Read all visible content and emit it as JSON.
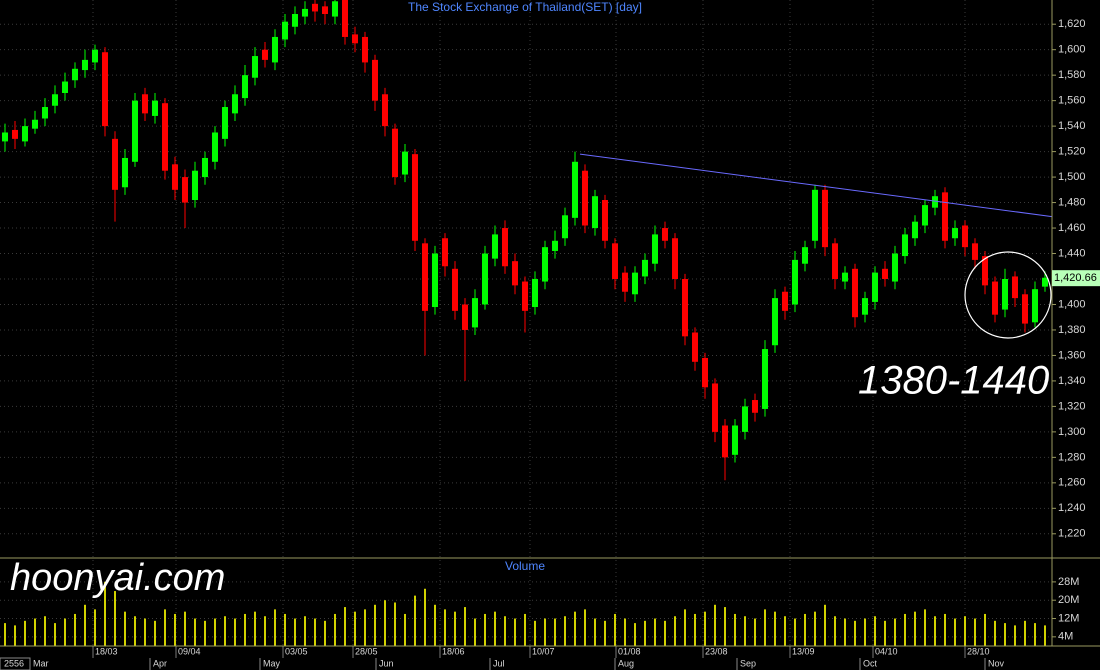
{
  "chart_data": {
    "type": "candlestick",
    "title": "The Stock Exchange of Thailand(SET) [day]",
    "volume_title": "Volume",
    "annotation": "1380-1440",
    "watermark": "hoonyai.com",
    "year_label": "2556",
    "up_color": "#00ff00",
    "down_color": "#ff0000",
    "volume_color": "#d2d200",
    "trendline_color": "#6a6aff",
    "grid": true,
    "ylim": [
      1201,
      1639
    ],
    "yticks": [
      {
        "value": 1220,
        "label": "1,220"
      },
      {
        "value": 1240,
        "label": "1,240"
      },
      {
        "value": 1260,
        "label": "1,260"
      },
      {
        "value": 1280,
        "label": "1,280"
      },
      {
        "value": 1300,
        "label": "1,300"
      },
      {
        "value": 1320,
        "label": "1,320"
      },
      {
        "value": 1340,
        "label": "1,340"
      },
      {
        "value": 1360,
        "label": "1,360"
      },
      {
        "value": 1380,
        "label": "1,380"
      },
      {
        "value": 1400,
        "label": "1,400"
      },
      {
        "value": 1420,
        "label": "1,420"
      },
      {
        "value": 1440,
        "label": "1,440"
      },
      {
        "value": 1460,
        "label": "1,460"
      },
      {
        "value": 1480,
        "label": "1,480"
      },
      {
        "value": 1500,
        "label": "1,500"
      },
      {
        "value": 1520,
        "label": "1,520"
      },
      {
        "value": 1540,
        "label": "1,540"
      },
      {
        "value": 1560,
        "label": "1,560"
      },
      {
        "value": 1580,
        "label": "1,580"
      },
      {
        "value": 1600,
        "label": "1,600"
      },
      {
        "value": 1620,
        "label": "1,620"
      }
    ],
    "vlim": [
      0,
      38
    ],
    "vticks": [
      {
        "value": 28,
        "label": "28M"
      },
      {
        "value": 20,
        "label": "20M"
      },
      {
        "value": 12,
        "label": "12M"
      },
      {
        "value": 4,
        "label": "4M"
      }
    ],
    "xlim": [
      -0.5,
      104.7
    ],
    "xticks": [
      {
        "value": 8.8,
        "label": "18/03"
      },
      {
        "value": 17.1,
        "label": "09/04"
      },
      {
        "value": 27.8,
        "label": "03/05"
      },
      {
        "value": 34.8,
        "label": "28/05"
      },
      {
        "value": 43.5,
        "label": "18/06"
      },
      {
        "value": 52.5,
        "label": "10/07"
      },
      {
        "value": 61.1,
        "label": "01/08"
      },
      {
        "value": 69.8,
        "label": "23/08"
      },
      {
        "value": 78.5,
        "label": "13/09"
      },
      {
        "value": 86.8,
        "label": "04/10"
      },
      {
        "value": 96,
        "label": "28/10"
      }
    ],
    "month_ticks": [
      {
        "value": 2.5,
        "label": "Mar"
      },
      {
        "value": 14.5,
        "label": "Apr"
      },
      {
        "value": 25.5,
        "label": "May"
      },
      {
        "value": 37.1,
        "label": "Jun"
      },
      {
        "value": 48.5,
        "label": "Jul"
      },
      {
        "value": 61,
        "label": "Aug"
      },
      {
        "value": 73.2,
        "label": "Sep"
      },
      {
        "value": 85.5,
        "label": "Oct"
      },
      {
        "value": 98,
        "label": "Nov"
      }
    ],
    "last_price": {
      "value": 1420.66,
      "label": "1,420.66"
    },
    "trendline": {
      "x": [
        57.5,
        104.7
      ],
      "y": [
        1518,
        1469
      ]
    },
    "open": [
      1528,
      1537,
      1528,
      1538,
      1546,
      1556,
      1566,
      1576,
      1584,
      1590,
      1598,
      1530,
      1492,
      1512,
      1565,
      1548,
      1558,
      1510,
      1500,
      1482,
      1500,
      1512,
      1530,
      1550,
      1562,
      1578,
      1600,
      1590,
      1608,
      1618,
      1626,
      1636,
      1634,
      1626,
      1640,
      1612,
      1610,
      1592,
      1565,
      1538,
      1502,
      1518,
      1448,
      1398,
      1452,
      1428,
      1400,
      1382,
      1400,
      1436,
      1460,
      1434,
      1418,
      1398,
      1418,
      1442,
      1452,
      1468,
      1505,
      1460,
      1482,
      1448,
      1425,
      1408,
      1422,
      1432,
      1460,
      1452,
      1420,
      1378,
      1358,
      1338,
      1305,
      1282,
      1300,
      1325,
      1318,
      1368,
      1410,
      1400,
      1432,
      1450,
      1490,
      1448,
      1418,
      1428,
      1392,
      1402,
      1428,
      1418,
      1438,
      1452,
      1462,
      1476,
      1488,
      1452,
      1462,
      1448,
      1438,
      1418,
      1396,
      1422,
      1408,
      1386,
      1414
    ],
    "high": [
      1542,
      1544,
      1546,
      1552,
      1562,
      1572,
      1582,
      1590,
      1600,
      1604,
      1602,
      1536,
      1522,
      1566,
      1570,
      1566,
      1562,
      1516,
      1506,
      1512,
      1520,
      1540,
      1560,
      1572,
      1588,
      1602,
      1606,
      1616,
      1628,
      1634,
      1638,
      1640,
      1638,
      1642,
      1644,
      1618,
      1614,
      1596,
      1570,
      1542,
      1526,
      1522,
      1452,
      1446,
      1456,
      1434,
      1405,
      1412,
      1446,
      1462,
      1466,
      1440,
      1422,
      1426,
      1450,
      1458,
      1476,
      1520,
      1510,
      1490,
      1486,
      1452,
      1430,
      1430,
      1440,
      1462,
      1465,
      1456,
      1424,
      1382,
      1362,
      1342,
      1310,
      1310,
      1326,
      1330,
      1372,
      1412,
      1414,
      1442,
      1450,
      1494,
      1494,
      1452,
      1430,
      1432,
      1410,
      1430,
      1434,
      1446,
      1460,
      1470,
      1482,
      1490,
      1492,
      1466,
      1466,
      1452,
      1442,
      1422,
      1428,
      1426,
      1412,
      1418,
      1426
    ],
    "low": [
      1520,
      1522,
      1524,
      1534,
      1540,
      1550,
      1560,
      1570,
      1578,
      1584,
      1532,
      1465,
      1486,
      1508,
      1544,
      1542,
      1498,
      1482,
      1460,
      1476,
      1494,
      1506,
      1524,
      1544,
      1556,
      1572,
      1586,
      1584,
      1602,
      1612,
      1620,
      1622,
      1620,
      1620,
      1604,
      1598,
      1582,
      1552,
      1532,
      1494,
      1496,
      1442,
      1360,
      1392,
      1422,
      1388,
      1340,
      1376,
      1396,
      1430,
      1424,
      1408,
      1378,
      1392,
      1412,
      1436,
      1446,
      1462,
      1456,
      1454,
      1444,
      1412,
      1402,
      1402,
      1416,
      1426,
      1444,
      1412,
      1368,
      1348,
      1326,
      1292,
      1262,
      1276,
      1294,
      1308,
      1312,
      1362,
      1388,
      1394,
      1426,
      1444,
      1438,
      1412,
      1412,
      1382,
      1386,
      1396,
      1414,
      1412,
      1432,
      1446,
      1456,
      1470,
      1444,
      1446,
      1438,
      1428,
      1408,
      1386,
      1390,
      1398,
      1378,
      1382,
      1410
    ],
    "close": [
      1535,
      1530,
      1540,
      1545,
      1555,
      1565,
      1575,
      1585,
      1592,
      1600,
      1540,
      1490,
      1515,
      1560,
      1550,
      1560,
      1505,
      1490,
      1480,
      1505,
      1515,
      1535,
      1555,
      1565,
      1580,
      1595,
      1592,
      1610,
      1622,
      1628,
      1632,
      1630,
      1628,
      1638,
      1610,
      1605,
      1590,
      1560,
      1540,
      1500,
      1520,
      1450,
      1395,
      1440,
      1430,
      1395,
      1380,
      1405,
      1440,
      1455,
      1430,
      1415,
      1395,
      1420,
      1445,
      1450,
      1470,
      1512,
      1462,
      1485,
      1450,
      1420,
      1410,
      1425,
      1435,
      1455,
      1450,
      1420,
      1375,
      1355,
      1335,
      1300,
      1280,
      1305,
      1320,
      1315,
      1365,
      1405,
      1395,
      1435,
      1445,
      1490,
      1445,
      1420,
      1425,
      1390,
      1405,
      1425,
      1420,
      1440,
      1455,
      1465,
      1478,
      1485,
      1450,
      1460,
      1445,
      1435,
      1415,
      1392,
      1420,
      1405,
      1385,
      1412,
      1421
    ],
    "volume": [
      10,
      9,
      11,
      12,
      13,
      10,
      12,
      14,
      18,
      16,
      28,
      24,
      15,
      13,
      12,
      11,
      16,
      14,
      15,
      12,
      11,
      12,
      13,
      12,
      14,
      15,
      13,
      16,
      14,
      12,
      13,
      12,
      11,
      14,
      17,
      15,
      16,
      18,
      20,
      19,
      14,
      22,
      25,
      18,
      16,
      15,
      17,
      12,
      14,
      15,
      13,
      12,
      14,
      11,
      12,
      12,
      13,
      15,
      16,
      12,
      11,
      14,
      12,
      10,
      11,
      12,
      11,
      13,
      16,
      14,
      15,
      18,
      17,
      14,
      13,
      12,
      16,
      15,
      13,
      12,
      14,
      15,
      18,
      13,
      12,
      11,
      12,
      13,
      11,
      12,
      14,
      15,
      16,
      13,
      14,
      12,
      13,
      12,
      14,
      11,
      10,
      9,
      11,
      10,
      9
    ]
  }
}
